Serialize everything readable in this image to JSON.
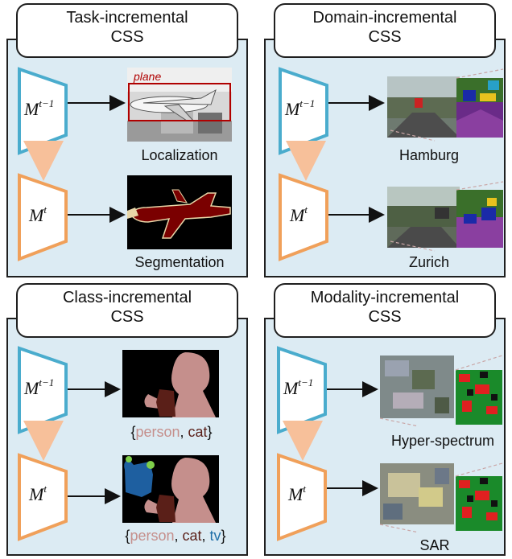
{
  "panels": {
    "task": {
      "title_line1": "Task-incremental",
      "title_line2": "CSS",
      "model_top": "M",
      "sup_top": "t−1",
      "model_bottom": "M",
      "sup_bottom": "t",
      "caption_top": "Localization",
      "caption_bottom": "Segmentation",
      "box_label": "plane"
    },
    "domain": {
      "title_line1": "Domain-incremental",
      "title_line2": "CSS",
      "model_top": "M",
      "sup_top": "t−1",
      "model_bottom": "M",
      "sup_bottom": "t",
      "caption_top": "Hamburg",
      "caption_bottom": "Zurich"
    },
    "class": {
      "title_line1": "Class-incremental",
      "title_line2": "CSS",
      "model_top": "M",
      "sup_top": "t−1",
      "model_bottom": "M",
      "sup_bottom": "t",
      "caption_top": {
        "open": "{",
        "c1": "person",
        "sep1": ", ",
        "c2": "cat",
        "close": "}"
      },
      "caption_bottom": {
        "open": "{",
        "c1": "person",
        "sep1": ", ",
        "c2": "cat",
        "sep2": ", ",
        "c3": "tv",
        "close": "}"
      }
    },
    "modality": {
      "title_line1": "Modality-incremental",
      "title_line2": "CSS",
      "model_top": "M",
      "sup_top": "t−1",
      "model_bottom": "M",
      "sup_bottom": "t",
      "caption_top": "Hyper-spectrum",
      "caption_bottom": "SAR"
    }
  },
  "colors": {
    "panel_bg": "#dcebf3",
    "model_prev": "#4aaccd",
    "model_curr": "#f0a05a",
    "person": "#c58f8c",
    "cat": "#5a1f18",
    "tv": "#1e6fa8",
    "plane_box": "#b00000",
    "plane_mask": "#7a0000",
    "dashed_line": "#c9a6a6"
  }
}
